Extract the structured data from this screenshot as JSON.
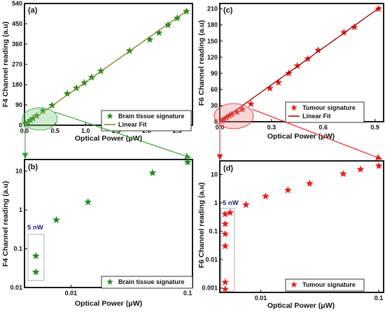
{
  "chart_data": [
    {
      "panel": "(a)",
      "type": "scatter",
      "xlabel": "Optical Power (μW)",
      "ylabel": "F4 Channel reading (a.u)",
      "xlim": [
        0,
        2.75
      ],
      "ylim": [
        0,
        540
      ],
      "xticks": [
        "0.0",
        "0.5",
        "1.0",
        "1.5",
        "2.0",
        "2.5"
      ],
      "yticks": [
        "0",
        "90",
        "180",
        "270",
        "360",
        "450",
        "540"
      ],
      "series": [
        {
          "name": "Brain tissue signature",
          "marker": "star",
          "color": "#1e8a1e",
          "x": [
            0.02,
            0.06,
            0.1,
            0.14,
            0.2,
            0.3,
            0.45,
            0.7,
            0.85,
            0.98,
            1.1,
            1.25,
            1.72,
            2.05,
            2.2,
            2.35,
            2.5,
            2.65
          ],
          "y": [
            5,
            13,
            22,
            30,
            42,
            64,
            88,
            140,
            165,
            188,
            212,
            240,
            330,
            380,
            410,
            445,
            475,
            505
          ]
        },
        {
          "name": "Linear Fit",
          "type": "line",
          "color": "#8a7a1e",
          "x": [
            0,
            2.68
          ],
          "y": [
            0,
            512
          ]
        }
      ]
    },
    {
      "panel": "(b)",
      "type": "scatter",
      "xlabel": "Optical Power (μW)",
      "ylabel": "F4 Channel reading (a.u)",
      "xscale": "log",
      "yscale": "log",
      "xlim": [
        0.004,
        0.11
      ],
      "ylim": [
        0.01,
        20
      ],
      "xticks": [
        "0.01",
        "0.1"
      ],
      "yticks": [
        "0.01",
        "0.1",
        "1",
        "10"
      ],
      "annotation": "5 nW",
      "series": [
        {
          "name": "Brain tissue signature",
          "marker": "star",
          "color": "#1e8a1e",
          "x": [
            0.005,
            0.005,
            0.0075,
            0.014,
            0.05,
            0.1
          ],
          "y": [
            0.025,
            0.065,
            0.55,
            1.6,
            9,
            17
          ]
        }
      ]
    },
    {
      "panel": "(c)",
      "type": "scatter",
      "xlabel": "Optical Power (μW)",
      "ylabel": "F6 Channel reading (a.u)",
      "xlim": [
        0,
        0.95
      ],
      "ylim": [
        0,
        220
      ],
      "xticks": [
        "0.0",
        "0.3",
        "0.6",
        "0.9"
      ],
      "yticks": [
        "0",
        "30",
        "60",
        "90",
        "120",
        "150",
        "180",
        "210"
      ],
      "series": [
        {
          "name": "Tumour signature",
          "marker": "star",
          "color": "#e51c1c",
          "x": [
            0.01,
            0.025,
            0.04,
            0.055,
            0.07,
            0.1,
            0.13,
            0.18,
            0.29,
            0.34,
            0.4,
            0.45,
            0.51,
            0.57,
            0.72,
            0.78,
            0.92
          ],
          "y": [
            2,
            5,
            8,
            11,
            14,
            18,
            23,
            33,
            62,
            73,
            90,
            104,
            117,
            133,
            166,
            176,
            210
          ]
        },
        {
          "name": "Linear Fit",
          "type": "line",
          "color": "#8b0000",
          "x": [
            0,
            0.93
          ],
          "y": [
            0,
            213
          ]
        }
      ]
    },
    {
      "panel": "(d)",
      "type": "scatter",
      "xlabel": "Optical Power (μW)",
      "ylabel": "F6 Channel reading (a.u)",
      "xscale": "log",
      "yscale": "log",
      "xlim": [
        0.0045,
        0.11
      ],
      "ylim": [
        0.0007,
        30
      ],
      "xticks": [
        "0.01",
        "0.1"
      ],
      "yticks": [
        "0.001",
        "0.01",
        "0.1",
        "1",
        "10"
      ],
      "annotation": "5 nW",
      "series": [
        {
          "name": "Tumour signature",
          "marker": "star",
          "color": "#e51c1c",
          "x": [
            0.005,
            0.005,
            0.005,
            0.005,
            0.005,
            0.005,
            0.0055,
            0.0075,
            0.011,
            0.017,
            0.026,
            0.05,
            0.07,
            0.1
          ],
          "y": [
            0.0009,
            0.0016,
            0.03,
            0.08,
            0.18,
            0.4,
            0.45,
            0.85,
            1.7,
            2.8,
            4.8,
            10.5,
            15,
            20
          ]
        }
      ]
    }
  ],
  "colors": {
    "green": "#1e8a1e",
    "red": "#e51c1c",
    "green_fit": "#8a7a1e",
    "red_fit": "#8b0000",
    "arrow_green": "#2e9e2e",
    "arrow_red": "#e02020"
  }
}
